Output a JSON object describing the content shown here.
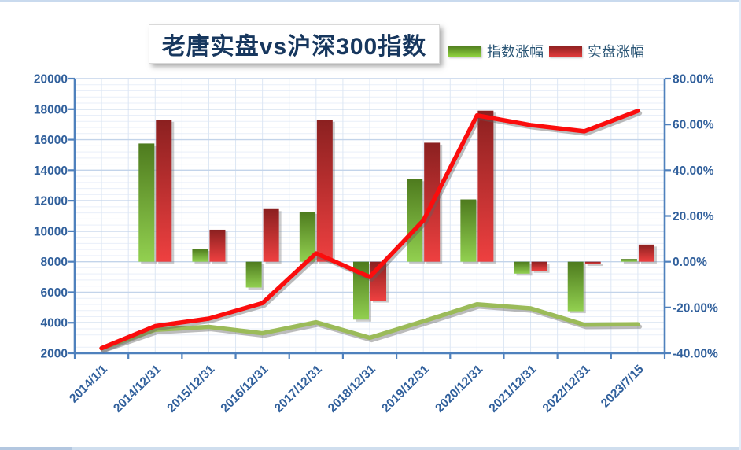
{
  "title": {
    "text": "老唐实盘vs沪深300指数"
  },
  "legend": {
    "index_label": "指数涨幅",
    "portfolio_label": "实盘涨幅"
  },
  "colors": {
    "axis": "#4f81bd",
    "grid_major": "#c3d4ea",
    "grid_minor": "#e9eff9",
    "grid_vertical": "#dde7f4",
    "tick_label": "#31609c",
    "title_text": "#17375e",
    "bar_index_top": "#4e7b1e",
    "bar_index_bottom": "#92d050",
    "bar_portfolio_top": "#8b2020",
    "bar_portfolio_bottom": "#ee4040",
    "line_index": "#9bbb59",
    "line_portfolio": "#fb0d0d",
    "shadow": "rgba(120,120,120,0.38)"
  },
  "chart_data": {
    "type": "combo bar+line",
    "title": "老唐实盘vs沪深300指数",
    "legend_position": "top",
    "grid": true,
    "categories": [
      "2014/1/1",
      "2014/12/31",
      "2015/12/31",
      "2016/12/31",
      "2017/12/31",
      "2018/12/31",
      "2019/12/31",
      "2020/12/31",
      "2021/12/31",
      "2022/12/31",
      "2023/7/15"
    ],
    "bar_series": [
      {
        "name": "指数涨幅",
        "axis": "right",
        "type": "bar",
        "values_pct": [
          null,
          51.66,
          5.58,
          -11.28,
          21.78,
          -25.31,
          36.07,
          27.21,
          -5.2,
          -21.63,
          1.2
        ]
      },
      {
        "name": "实盘涨幅",
        "axis": "right",
        "type": "bar",
        "values_pct": [
          null,
          62,
          14,
          23,
          62,
          -17,
          52,
          66,
          -4,
          -1,
          7.5
        ]
      }
    ],
    "line_series": [
      {
        "key": "index_line",
        "axis": "left",
        "type": "line",
        "values": [
          2330,
          3533,
          3731,
          3310,
          4031,
          3011,
          4097,
          5211,
          4940,
          3872,
          3899
        ]
      },
      {
        "key": "portfolio_line",
        "axis": "left",
        "type": "line",
        "values": [
          2330,
          3780,
          4270,
          5290,
          8550,
          7000,
          10700,
          17590,
          16960,
          16550,
          17890
        ]
      }
    ],
    "left_axis": {
      "min": 2000,
      "max": 20000,
      "step": 2000,
      "minor_step": 400,
      "tick_labels": [
        "20000",
        "18000",
        "16000",
        "14000",
        "12000",
        "10000",
        "8000",
        "6000",
        "4000",
        "2000"
      ]
    },
    "right_axis": {
      "min": -40,
      "max": 80,
      "step": 20,
      "tick_labels": [
        "80.00%",
        "60.00%",
        "40.00%",
        "20.00%",
        "0.00%",
        "-20.00%",
        "-40.00%"
      ]
    }
  }
}
